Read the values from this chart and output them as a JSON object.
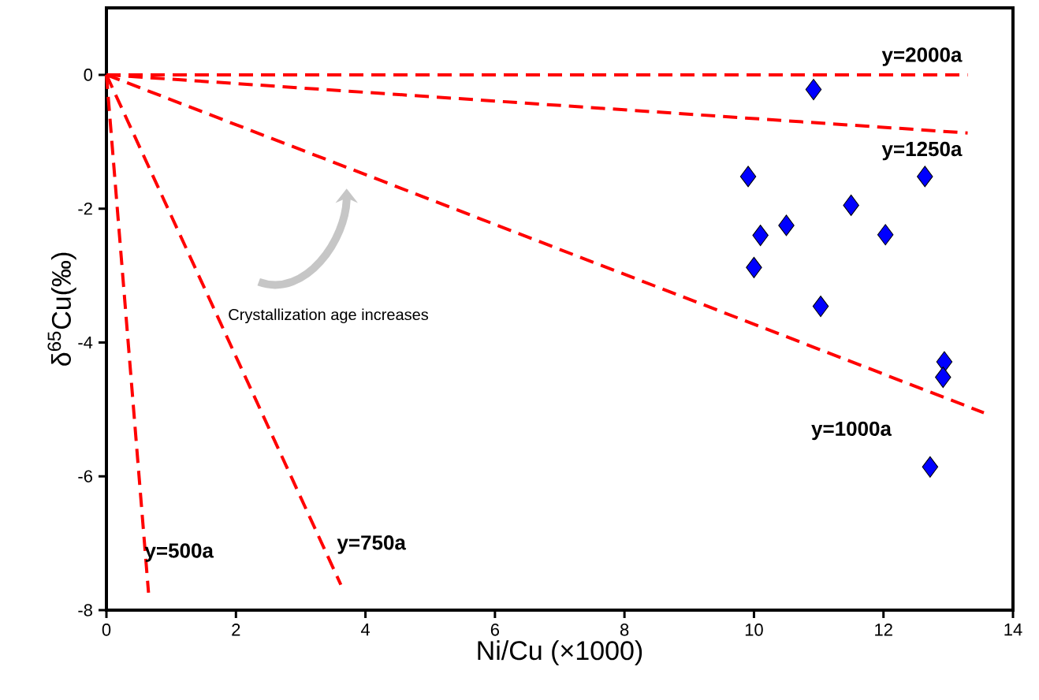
{
  "chart_data": {
    "type": "scatter",
    "xlabel": "Ni/Cu (×1000)",
    "ylabel": "δ$^{65}$Cu(‰)",
    "xlim": [
      0,
      14
    ],
    "ylim": [
      -8,
      1
    ],
    "xticks": [
      0,
      2,
      4,
      6,
      8,
      10,
      12,
      14
    ],
    "yticks": [
      -8,
      -6,
      -4,
      -2,
      0
    ],
    "grid": false,
    "legend": false,
    "annotations": [
      "Crystallization age increases"
    ],
    "series": [
      {
        "marker": "diamond",
        "color": "#0000ff",
        "x": [
          10.92,
          9.91,
          12.64,
          11.5,
          10.1,
          10.5,
          12.03,
          10.0,
          11.03,
          12.94,
          12.92,
          12.72
        ],
        "values": [
          -0.22,
          -1.52,
          -1.52,
          -1.95,
          -2.4,
          -2.25,
          -2.39,
          -2.88,
          -3.46,
          -4.29,
          -4.52,
          -5.86
        ]
      },
      {
        "type": "line",
        "name": "y=2000a",
        "color": "#ff0000",
        "line_style": "dashed",
        "marker": "none",
        "x": [
          0,
          13.3
        ],
        "values": [
          0,
          0
        ]
      },
      {
        "type": "line",
        "name": "y=1250a",
        "color": "#ff0000",
        "line_style": "dashed",
        "marker": "none",
        "x": [
          0,
          13.3
        ],
        "values": [
          0,
          -0.87
        ]
      },
      {
        "type": "line",
        "name": "y=1000a",
        "color": "#ff0000",
        "line_style": "dashed",
        "marker": "none",
        "x": [
          0,
          13.55
        ],
        "values": [
          0,
          -5.05
        ]
      },
      {
        "type": "line",
        "name": "y=750a",
        "color": "#ff0000",
        "line_style": "dashed",
        "marker": "none",
        "x": [
          0,
          3.62
        ],
        "values": [
          0,
          -7.62
        ]
      },
      {
        "type": "line",
        "name": "y=500a",
        "color": "#ff0000",
        "line_style": "dashed",
        "marker": "none",
        "x": [
          0,
          0.65
        ],
        "values": [
          0,
          -7.74
        ]
      }
    ]
  }
}
